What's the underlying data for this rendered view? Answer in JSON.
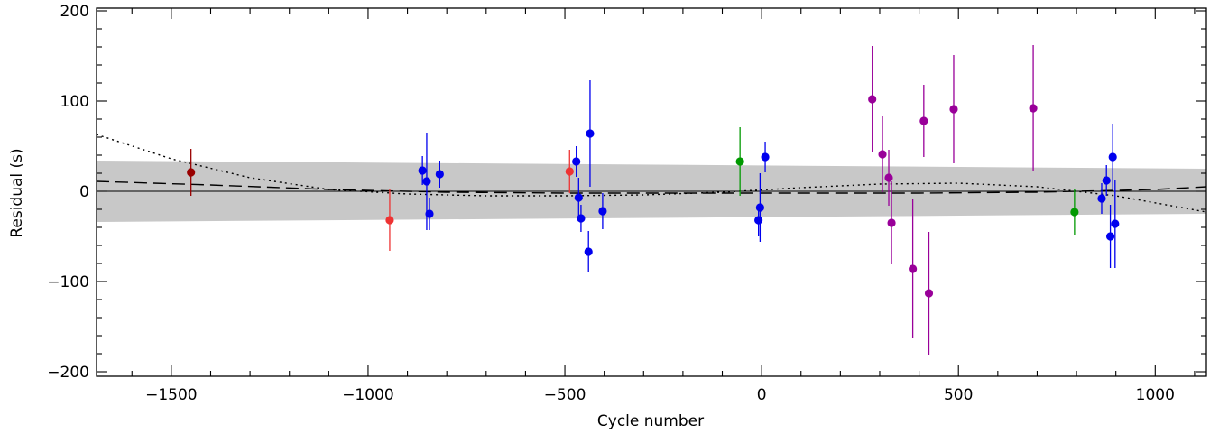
{
  "chart_data": {
    "type": "scatter",
    "title": "",
    "xlabel": "Cycle number",
    "ylabel": "Residual (s)",
    "xlim": [
      -1690,
      1130
    ],
    "ylim": [
      -205,
      203
    ],
    "x_ticks": [
      -1500,
      -1000,
      -500,
      0,
      500,
      1000
    ],
    "y_ticks": [
      -200,
      -100,
      0,
      100,
      200
    ],
    "grid": false,
    "reference_line": 0,
    "confidence_band": {
      "color": "#c8c8c8",
      "x": [
        -1690,
        1130
      ],
      "upper": [
        34,
        25
      ],
      "lower": [
        -34,
        -25
      ]
    },
    "dashed_curve": {
      "x": [
        -1690,
        -1400,
        -1100,
        -800,
        -500,
        -200,
        100,
        400,
        700,
        1000,
        1130
      ],
      "y": [
        11,
        7,
        2,
        -1,
        -2,
        -2,
        -2,
        -2,
        -1,
        2,
        5
      ]
    },
    "dotted_curve": {
      "x": [
        -1690,
        -1500,
        -1300,
        -1100,
        -900,
        -700,
        -500,
        -300,
        -100,
        100,
        300,
        500,
        700,
        900,
        1130
      ],
      "y": [
        63,
        36,
        15,
        2,
        -3,
        -5,
        -5,
        -4,
        -1,
        4,
        8,
        9,
        5,
        -5,
        -23
      ]
    },
    "series": [
      {
        "color": "#990000",
        "points": [
          {
            "x": -1450,
            "y": 21,
            "err": 26
          }
        ]
      },
      {
        "color": "#ee3333",
        "points": [
          {
            "x": -945,
            "y": -32,
            "err": 34
          },
          {
            "x": -488,
            "y": 22,
            "err": 24
          }
        ]
      },
      {
        "color": "#0000ee",
        "points": [
          {
            "x": -862,
            "y": 23,
            "err": 16
          },
          {
            "x": -851,
            "y": 11,
            "err": 54
          },
          {
            "x": -844,
            "y": -25,
            "err": 18
          },
          {
            "x": -818,
            "y": 19,
            "err": 15
          },
          {
            "x": -471,
            "y": 33,
            "err": 17
          },
          {
            "x": -465,
            "y": -7,
            "err": 22
          },
          {
            "x": -459,
            "y": -30,
            "err": 15
          },
          {
            "x": -440,
            "y": -67,
            "err": 23
          },
          {
            "x": -436,
            "y": 64,
            "err": 59
          },
          {
            "x": -404,
            "y": -22,
            "err": 20
          },
          {
            "x": -8,
            "y": -32,
            "err": 18
          },
          {
            "x": -4,
            "y": -18,
            "err": 38
          },
          {
            "x": 9,
            "y": 38,
            "err": 17
          },
          {
            "x": 864,
            "y": -8,
            "err": 17
          },
          {
            "x": 876,
            "y": 12,
            "err": 17
          },
          {
            "x": 886,
            "y": -50,
            "err": 35
          },
          {
            "x": 892,
            "y": 38,
            "err": 37
          },
          {
            "x": 898,
            "y": -36,
            "err": 49
          }
        ]
      },
      {
        "color": "#009900",
        "points": [
          {
            "x": -55,
            "y": 33,
            "err": 38
          },
          {
            "x": 795,
            "y": -23,
            "err": 25
          }
        ]
      },
      {
        "color": "#990099",
        "points": [
          {
            "x": 281,
            "y": 102,
            "err": 59
          },
          {
            "x": 307,
            "y": 41,
            "err": 42
          },
          {
            "x": 323,
            "y": 15,
            "err": 31
          },
          {
            "x": 330,
            "y": -35,
            "err": 46
          },
          {
            "x": 384,
            "y": -86,
            "err": 77
          },
          {
            "x": 412,
            "y": 78,
            "err": 40
          },
          {
            "x": 425,
            "y": -113,
            "err": 68
          },
          {
            "x": 488,
            "y": 91,
            "err": 60
          },
          {
            "x": 690,
            "y": 92,
            "err": 70
          }
        ]
      }
    ]
  }
}
